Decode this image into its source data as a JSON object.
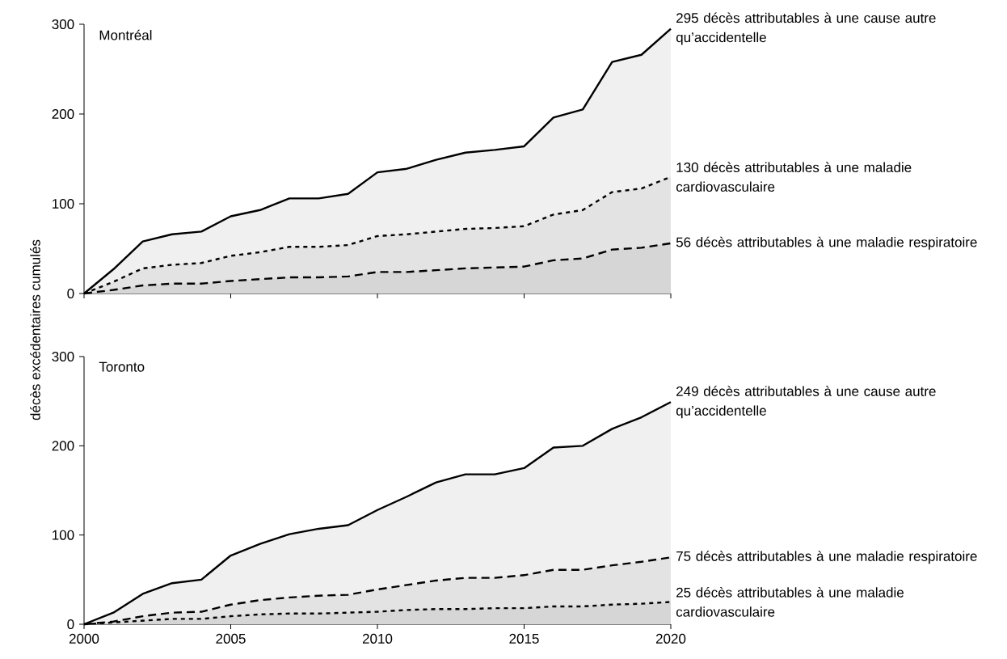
{
  "chart_data": [
    {
      "type": "area",
      "title": "Montréal",
      "ylabel": "décès excédentaires cumulés",
      "xlim": [
        2000,
        2020
      ],
      "ylim": [
        0,
        300
      ],
      "xticks": [
        2000,
        2005,
        2010,
        2015,
        2020
      ],
      "yticks": [
        0,
        100,
        200,
        300
      ],
      "tick_labels": "y",
      "legend": false,
      "grid": false,
      "x": [
        2000,
        2001,
        2002,
        2003,
        2004,
        2005,
        2006,
        2007,
        2008,
        2009,
        2010,
        2011,
        2012,
        2013,
        2014,
        2015,
        2016,
        2017,
        2018,
        2019,
        2020
      ],
      "series": [
        {
          "name": "295 décès attributables à une cause autre qu’accidentelle",
          "color": "#000000",
          "line_style": "solid",
          "values": [
            0,
            27,
            58,
            66,
            69,
            86,
            93,
            106,
            106,
            111,
            135,
            139,
            149,
            157,
            160,
            164,
            196,
            205,
            258,
            266,
            295
          ]
        },
        {
          "name": "130 décès attributables à une maladie cardiovasculaire",
          "color": "#000000",
          "line_style": "dotted",
          "values": [
            0,
            13,
            28,
            32,
            34,
            42,
            46,
            52,
            52,
            54,
            64,
            66,
            69,
            72,
            73,
            75,
            88,
            93,
            113,
            117,
            130
          ]
        },
        {
          "name": "56 décès attributables à une maladie respiratoire",
          "color": "#000000",
          "line_style": "dashed",
          "values": [
            0,
            4,
            9,
            11,
            11,
            14,
            16,
            18,
            18,
            19,
            24,
            24,
            26,
            28,
            29,
            30,
            37,
            39,
            49,
            51,
            56
          ]
        }
      ]
    },
    {
      "type": "area",
      "title": "Toronto",
      "xlim": [
        2000,
        2020
      ],
      "ylim": [
        0,
        300
      ],
      "xticks": [
        2000,
        2005,
        2010,
        2015,
        2020
      ],
      "yticks": [
        0,
        100,
        200,
        300
      ],
      "legend": false,
      "grid": false,
      "x": [
        2000,
        2001,
        2002,
        2003,
        2004,
        2005,
        2006,
        2007,
        2008,
        2009,
        2010,
        2011,
        2012,
        2013,
        2014,
        2015,
        2016,
        2017,
        2018,
        2019,
        2020
      ],
      "series": [
        {
          "name": "249 décès attributables à une cause autre qu’accidentelle",
          "color": "#000000",
          "line_style": "solid",
          "values": [
            0,
            13,
            34,
            46,
            50,
            77,
            90,
            101,
            107,
            111,
            128,
            143,
            159,
            168,
            168,
            175,
            198,
            200,
            219,
            232,
            249
          ]
        },
        {
          "name": "75 décès attributables à une maladie respiratoire",
          "color": "#000000",
          "line_style": "dashed",
          "values": [
            0,
            3,
            9,
            13,
            14,
            22,
            27,
            30,
            32,
            33,
            39,
            44,
            49,
            52,
            52,
            55,
            61,
            61,
            66,
            70,
            75
          ]
        },
        {
          "name": "25 décès attributables à une maladie cardiovasculaire",
          "color": "#000000",
          "line_style": "dotted",
          "values": [
            0,
            2,
            4,
            6,
            6,
            9,
            11,
            12,
            12,
            13,
            14,
            16,
            17,
            17,
            18,
            18,
            20,
            20,
            22,
            23,
            25
          ]
        }
      ]
    }
  ]
}
